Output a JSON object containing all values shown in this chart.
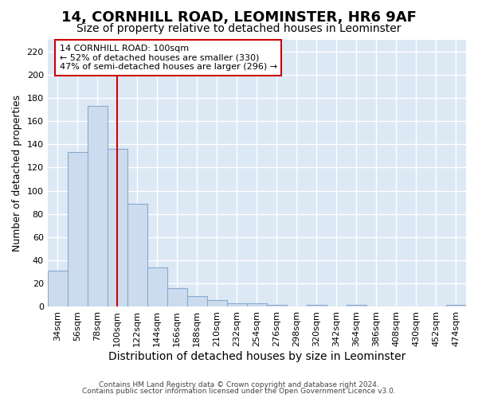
{
  "title": "14, CORNHILL ROAD, LEOMINSTER, HR6 9AF",
  "subtitle": "Size of property relative to detached houses in Leominster",
  "xlabel": "Distribution of detached houses by size in Leominster",
  "ylabel": "Number of detached properties",
  "bar_labels": [
    "34sqm",
    "56sqm",
    "78sqm",
    "100sqm",
    "122sqm",
    "144sqm",
    "166sqm",
    "188sqm",
    "210sqm",
    "232sqm",
    "254sqm",
    "276sqm",
    "298sqm",
    "320sqm",
    "342sqm",
    "364sqm",
    "386sqm",
    "408sqm",
    "430sqm",
    "452sqm",
    "474sqm"
  ],
  "bar_values": [
    31,
    133,
    173,
    136,
    89,
    34,
    16,
    9,
    6,
    3,
    3,
    2,
    0,
    2,
    0,
    2,
    0,
    0,
    0,
    0,
    2
  ],
  "bar_color": "#ccdcee",
  "bar_edge_color": "#88aad0",
  "vline_idx": 3,
  "vline_color": "#cc0000",
  "annotation_line1": "14 CORNHILL ROAD: 100sqm",
  "annotation_line2": "← 52% of detached houses are smaller (330)",
  "annotation_line3": "47% of semi-detached houses are larger (296) →",
  "annotation_box_facecolor": "#ffffff",
  "annotation_box_edgecolor": "#cc0000",
  "ylim": [
    0,
    230
  ],
  "yticks": [
    0,
    20,
    40,
    60,
    80,
    100,
    120,
    140,
    160,
    180,
    200,
    220
  ],
  "fig_bg_color": "#ffffff",
  "ax_bg_color": "#dde8f5",
  "grid_color": "#ffffff",
  "title_fontsize": 13,
  "subtitle_fontsize": 10,
  "ylabel_fontsize": 9,
  "xlabel_fontsize": 10,
  "tick_fontsize": 8,
  "footer_line1": "Contains HM Land Registry data © Crown copyright and database right 2024.",
  "footer_line2": "Contains public sector information licensed under the Open Government Licence v3.0."
}
